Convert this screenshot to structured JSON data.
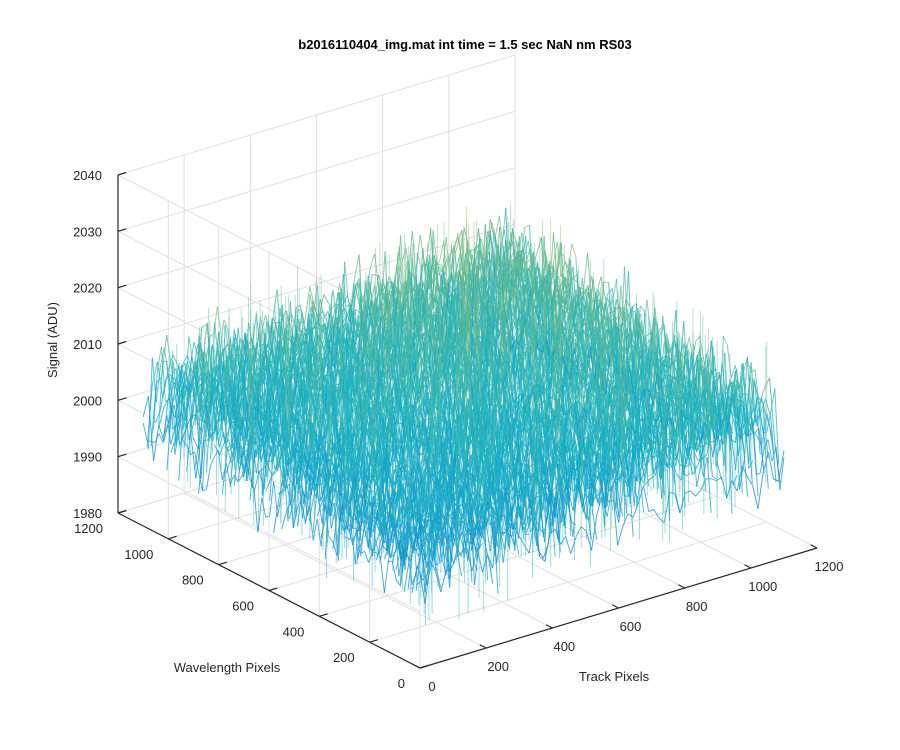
{
  "chart_data": {
    "type": "surface",
    "title": "b2016110404_img.mat int time = 1.5 sec  NaN nm RS03",
    "xlabel": "Track Pixels",
    "ylabel": "Wavelength Pixels",
    "zlabel": "Signal (ADU)",
    "xlim": [
      0,
      1200
    ],
    "ylim": [
      0,
      1200
    ],
    "zlim": [
      1980,
      2040
    ],
    "x_ticks": [
      0,
      200,
      400,
      600,
      800,
      1000,
      1200
    ],
    "y_ticks": [
      0,
      200,
      400,
      600,
      800,
      1000,
      1200
    ],
    "z_ticks": [
      1980,
      1990,
      2000,
      2010,
      2020,
      2030,
      2040
    ],
    "x_tick_labels": [
      "0",
      "200",
      "400",
      "600",
      "800",
      "1000",
      "1200"
    ],
    "y_tick_labels": [
      "0",
      "200",
      "400",
      "600",
      "800",
      "1000",
      "1200"
    ],
    "z_tick_labels": [
      "1980",
      "1990",
      "2000",
      "2010",
      "2020",
      "2030",
      "2040"
    ],
    "grid": true,
    "colormap": "parula",
    "surface": {
      "x_range": [
        0,
        1100
      ],
      "y_range": [
        0,
        1100
      ],
      "mean_signal": 2005,
      "min_signal": 1983,
      "max_signal": 2030,
      "edge_signal": 1996
    },
    "colors": {
      "low": "#0a72d8",
      "mid": "#14b3c6",
      "high": "#c8c14a",
      "axis": "#262626",
      "grid": "#e0e0e0"
    }
  }
}
